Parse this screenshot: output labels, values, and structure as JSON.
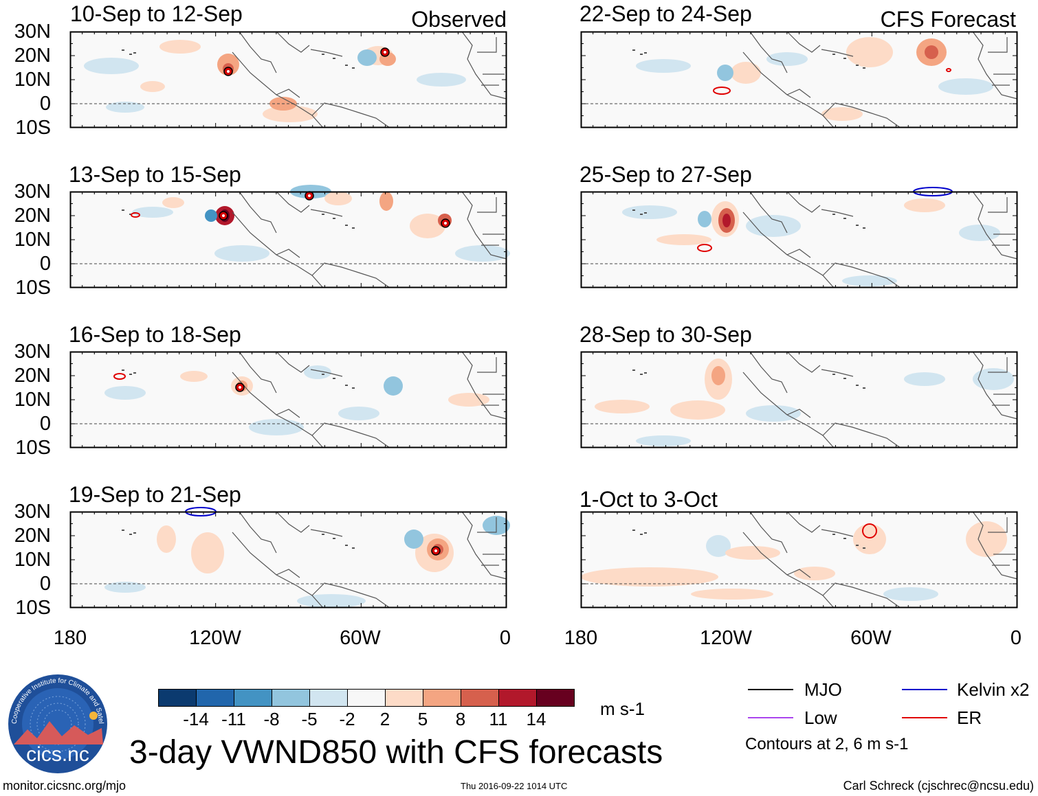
{
  "panels": {
    "left": [
      {
        "title": "10-Sep to 12-Sep",
        "label": "Observed"
      },
      {
        "title": "13-Sep to 15-Sep",
        "label": ""
      },
      {
        "title": "16-Sep to 18-Sep",
        "label": ""
      },
      {
        "title": "19-Sep to 21-Sep",
        "label": ""
      }
    ],
    "right": [
      {
        "title": "22-Sep to 24-Sep",
        "label": "CFS Forecast"
      },
      {
        "title": "25-Sep to 27-Sep",
        "label": ""
      },
      {
        "title": "28-Sep to 30-Sep",
        "label": ""
      },
      {
        "title": "1-Oct to 3-Oct",
        "label": ""
      }
    ]
  },
  "axes": {
    "lat_labels": [
      "30N",
      "20N",
      "10N",
      "0",
      "10S"
    ],
    "lon_labels": [
      "180",
      "120W",
      "60W",
      "0"
    ]
  },
  "colorbar": {
    "labels": [
      "-14",
      "-11",
      "-8",
      "-5",
      "-2",
      "2",
      "5",
      "8",
      "11",
      "14"
    ],
    "colors": [
      "#0b3a6f",
      "#2166ac",
      "#4393c3",
      "#92c5de",
      "#d1e5f0",
      "#f7f7f7",
      "#fddbc7",
      "#f4a582",
      "#d6604d",
      "#b2182b",
      "#67001f"
    ],
    "units": "m s-1"
  },
  "legend": {
    "items": [
      {
        "name": "MJO",
        "color": "#000000"
      },
      {
        "name": "Kelvin x2",
        "color": "#0000cc"
      },
      {
        "name": "Low",
        "color": "#aa44ee"
      },
      {
        "name": "ER",
        "color": "#e00000"
      }
    ],
    "note": "Contours at 2, 6 m s-1"
  },
  "logo": {
    "text": "cics.nc",
    "ring_text": "Cooperative Institute for Climate and Satellites"
  },
  "main_title": "3-day VWND850 with CFS forecasts",
  "footer": {
    "left": "monitor.cicsnc.org/mjo",
    "center": "Thu 2016-09-22 1014 UTC",
    "right": "Carl Schreck (cjschrec@ncsu.edu)"
  }
}
